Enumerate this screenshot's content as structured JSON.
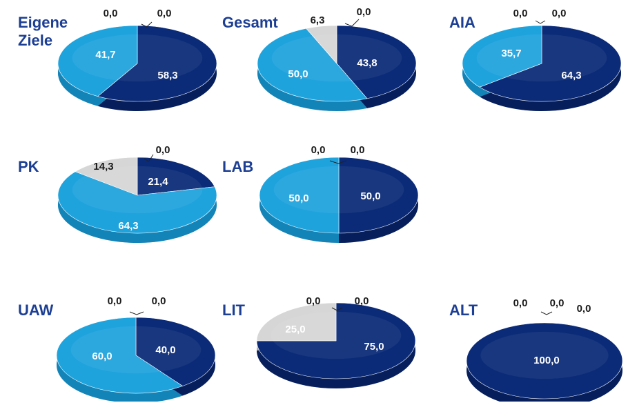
{
  "colors": {
    "dark_blue": "#0b2b78",
    "light_blue": "#1fa3dd",
    "grey": "#d6d6d6",
    "title": "#1c3f94",
    "label_on_pie": "#ffffff",
    "label_outside": "#1a1a1a"
  },
  "chart_data": [
    {
      "type": "pie",
      "title": "Eigene Ziele",
      "title_lines": [
        "Eigene",
        "Ziele"
      ],
      "slices": [
        {
          "color": "dark_blue",
          "value": 58.3,
          "label": "58,3"
        },
        {
          "color": "light_blue",
          "value": 41.7,
          "label": "41,7"
        },
        {
          "color": "grey",
          "value": 0.0,
          "label": "0,0"
        },
        {
          "color": "other",
          "value": 0.0,
          "label": "0,0"
        }
      ]
    },
    {
      "type": "pie",
      "title": "Gesamt",
      "slices": [
        {
          "color": "dark_blue",
          "value": 43.8,
          "label": "43,8"
        },
        {
          "color": "light_blue",
          "value": 50.0,
          "label": "50,0"
        },
        {
          "color": "grey",
          "value": 6.3,
          "label": "6,3"
        },
        {
          "color": "other",
          "value": 0.0,
          "label": "0,0"
        }
      ]
    },
    {
      "type": "pie",
      "title": "AIA",
      "slices": [
        {
          "color": "dark_blue",
          "value": 64.3,
          "label": "64,3"
        },
        {
          "color": "light_blue",
          "value": 35.7,
          "label": "35,7"
        },
        {
          "color": "grey",
          "value": 0.0,
          "label": "0,0"
        },
        {
          "color": "other",
          "value": 0.0,
          "label": "0,0"
        }
      ]
    },
    {
      "type": "pie",
      "title": "PK",
      "slices": [
        {
          "color": "dark_blue",
          "value": 21.4,
          "label": "21,4"
        },
        {
          "color": "light_blue",
          "value": 64.3,
          "label": "64,3"
        },
        {
          "color": "grey",
          "value": 14.3,
          "label": "14,3"
        },
        {
          "color": "other",
          "value": 0.0,
          "label": "0,0"
        }
      ]
    },
    {
      "type": "pie",
      "title": "LAB",
      "slices": [
        {
          "color": "dark_blue",
          "value": 50.0,
          "label": "50,0"
        },
        {
          "color": "light_blue",
          "value": 50.0,
          "label": "50,0"
        },
        {
          "color": "grey",
          "value": 0.0,
          "label": "0,0"
        },
        {
          "color": "other",
          "value": 0.0,
          "label": "0,0"
        }
      ]
    },
    {
      "type": "pie",
      "title": "UAW",
      "slices": [
        {
          "color": "dark_blue",
          "value": 40.0,
          "label": "40,0"
        },
        {
          "color": "light_blue",
          "value": 60.0,
          "label": "60,0"
        },
        {
          "color": "grey",
          "value": 0.0,
          "label": "0,0"
        },
        {
          "color": "other",
          "value": 0.0,
          "label": "0,0"
        }
      ]
    },
    {
      "type": "pie",
      "title": "LIT",
      "slices": [
        {
          "color": "dark_blue",
          "value": 75.0,
          "label": "75,0"
        },
        {
          "color": "light_blue",
          "value": 0.0,
          "label": "0,0"
        },
        {
          "color": "grey",
          "value": 25.0,
          "label": "25,0"
        },
        {
          "color": "other",
          "value": 0.0,
          "label": "0,0"
        }
      ]
    },
    {
      "type": "pie",
      "title": "ALT",
      "slices": [
        {
          "color": "dark_blue",
          "value": 100.0,
          "label": "100,0"
        },
        {
          "color": "light_blue",
          "value": 0.0,
          "label": "0,0"
        },
        {
          "color": "grey",
          "value": 0.0,
          "label": "0,0"
        },
        {
          "color": "other",
          "value": 0.0,
          "label": "0,0"
        }
      ]
    }
  ]
}
